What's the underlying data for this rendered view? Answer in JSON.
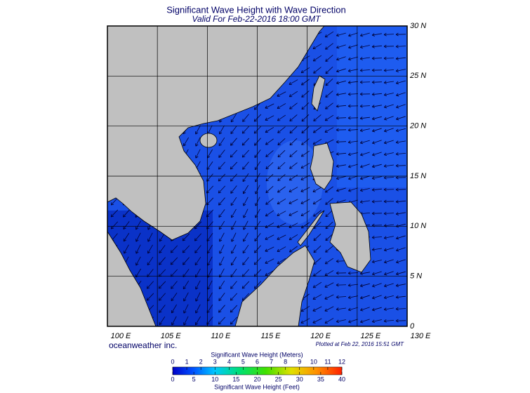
{
  "header": {
    "title": "Significant Wave Height with Wave Direction",
    "subtitle": "Valid For Feb-22-2016 18:00 GMT"
  },
  "map": {
    "lat_labels": [
      "30 N",
      "25 N",
      "20 N",
      "15 N",
      "10 N",
      "5 N",
      "0"
    ],
    "lon_labels": [
      "100 E",
      "105 E",
      "110 E",
      "115 E",
      "120 E",
      "125 E",
      "130 E"
    ]
  },
  "footer": {
    "credit": "oceanweather inc.",
    "plotted": "Plotted at Feb 22, 2016 15:51 GMT"
  },
  "colorbar": {
    "top_title": "Significant Wave Height (Meters)",
    "meters_ticks": [
      0,
      1,
      2,
      3,
      4,
      5,
      6,
      7,
      8,
      9,
      10,
      11,
      12
    ],
    "feet_ticks": [
      0,
      5,
      10,
      15,
      20,
      25,
      30,
      35,
      40
    ],
    "bottom_title": "Significant Wave Height (Feet)"
  }
}
